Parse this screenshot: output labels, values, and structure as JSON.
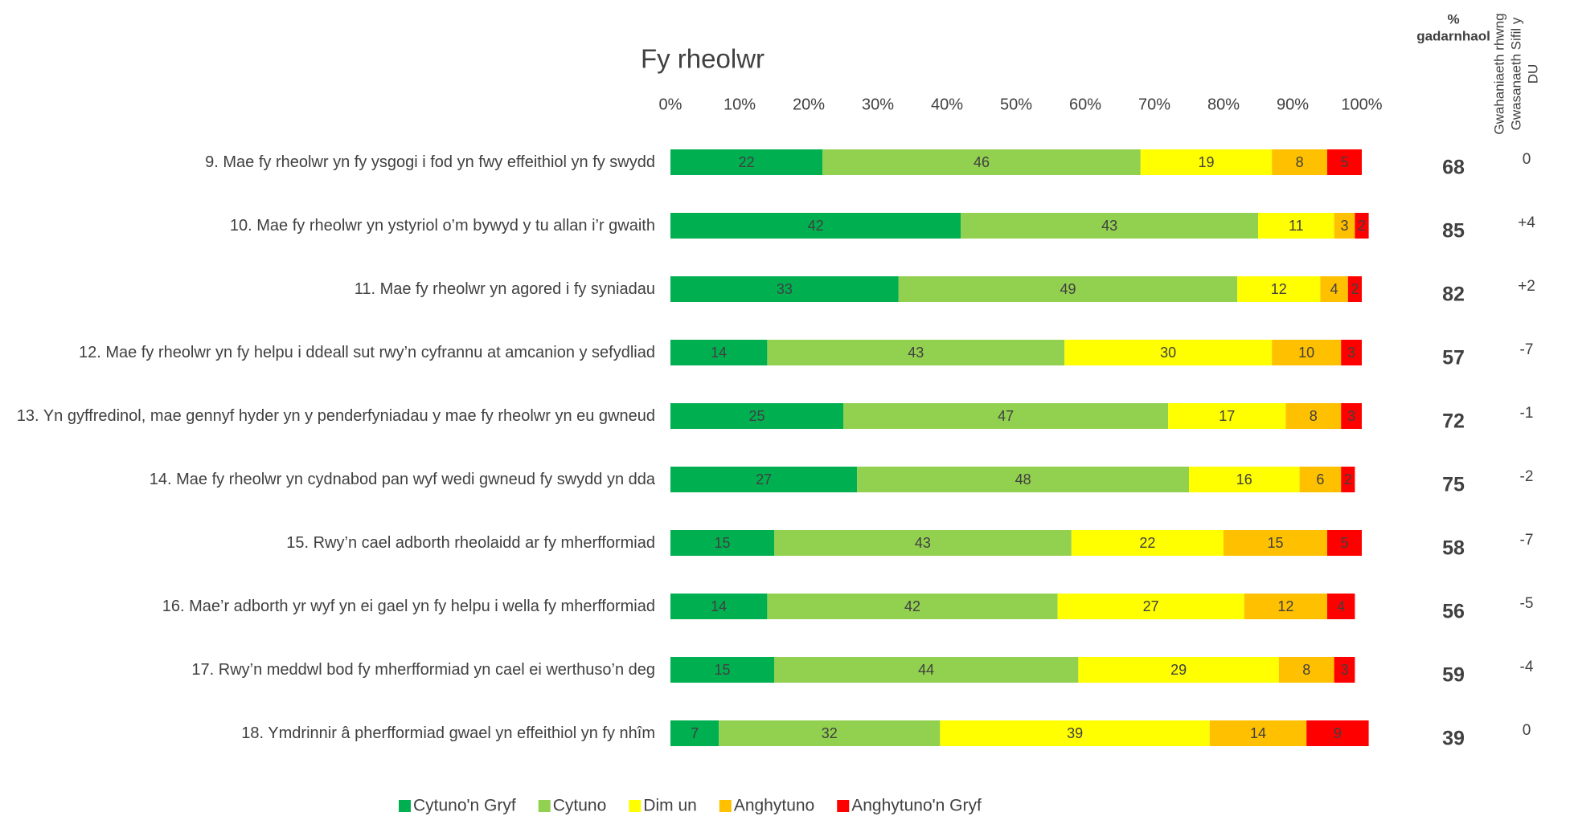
{
  "chart_data": {
    "type": "stacked_bar_horizontal",
    "title": "Fy rheolwr",
    "categories": [
      "9. Mae fy rheolwr yn fy ysgogi i fod yn fwy effeithiol yn fy swydd",
      "10. Mae fy rheolwr yn ystyriol o’m bywyd y tu allan i’r gwaith",
      "11. Mae fy rheolwr yn agored i fy syniadau",
      "12. Mae fy rheolwr yn fy helpu i ddeall sut rwy’n cyfrannu at amcanion y sefydliad",
      "13. Yn gyffredinol, mae gennyf hyder yn y penderfyniadau y mae fy rheolwr yn eu gwneud",
      "14. Mae fy rheolwr yn cydnabod pan wyf wedi gwneud fy swydd yn dda",
      "15. Rwy’n cael adborth rheolaidd ar fy mherfformiad",
      "16. Mae’r adborth yr wyf yn ei gael yn fy helpu i wella fy mherfformiad",
      "17. Rwy’n meddwl bod fy mherfformiad yn cael ei werthuso’n deg",
      "18. Ymdrinnir â pherfformiad gwael yn effeithiol yn fy nhîm"
    ],
    "series": [
      {
        "name": "Cytuno'n Gryf",
        "color": "#00b050",
        "label_color": "#ffffff",
        "values": [
          22,
          42,
          33,
          14,
          25,
          27,
          15,
          14,
          15,
          7
        ]
      },
      {
        "name": "Cytuno",
        "color": "#92d050",
        "label_color": "#ffffff",
        "values": [
          46,
          43,
          49,
          43,
          47,
          48,
          43,
          42,
          44,
          32
        ]
      },
      {
        "name": "Dim un",
        "color": "#ffff00",
        "label_color": "#404040",
        "values": [
          19,
          11,
          12,
          30,
          17,
          16,
          22,
          27,
          29,
          39
        ]
      },
      {
        "name": "Anghytuno",
        "color": "#ffc000",
        "label_color": "#404040",
        "values": [
          8,
          3,
          4,
          10,
          8,
          6,
          15,
          12,
          8,
          14
        ]
      },
      {
        "name": "Anghytuno'n Gryf",
        "color": "#ff0000",
        "label_color": "#ffffff",
        "values": [
          5,
          2,
          2,
          3,
          3,
          2,
          5,
          4,
          3,
          9
        ]
      }
    ],
    "xlim": [
      0,
      100
    ],
    "xticks": [
      {
        "value": 0,
        "label": "0%"
      },
      {
        "value": 10,
        "label": "10%"
      },
      {
        "value": 20,
        "label": "20%"
      },
      {
        "value": 30,
        "label": "30%"
      },
      {
        "value": 40,
        "label": "40%"
      },
      {
        "value": 50,
        "label": "50%"
      },
      {
        "value": 60,
        "label": "60%"
      },
      {
        "value": 70,
        "label": "70%"
      },
      {
        "value": 80,
        "label": "80%"
      },
      {
        "value": 90,
        "label": "90%"
      },
      {
        "value": 100,
        "label": "100%"
      }
    ],
    "legend": "bottom",
    "positive": {
      "header": [
        "%",
        "gadarnhaol"
      ],
      "values": [
        68,
        85,
        82,
        57,
        72,
        75,
        58,
        56,
        59,
        39
      ]
    },
    "difference": {
      "header": [
        "Gwahaniaeth rhwng",
        "Gwasanaeth Sifil y",
        "DU"
      ],
      "values": [
        0,
        4,
        2,
        -7,
        -1,
        -2,
        -7,
        -5,
        -4,
        0
      ],
      "value_labels": [
        "0",
        "+4",
        "+2",
        "-7",
        "-1",
        "-2",
        "-7",
        "-5",
        "-4",
        "0"
      ]
    }
  }
}
